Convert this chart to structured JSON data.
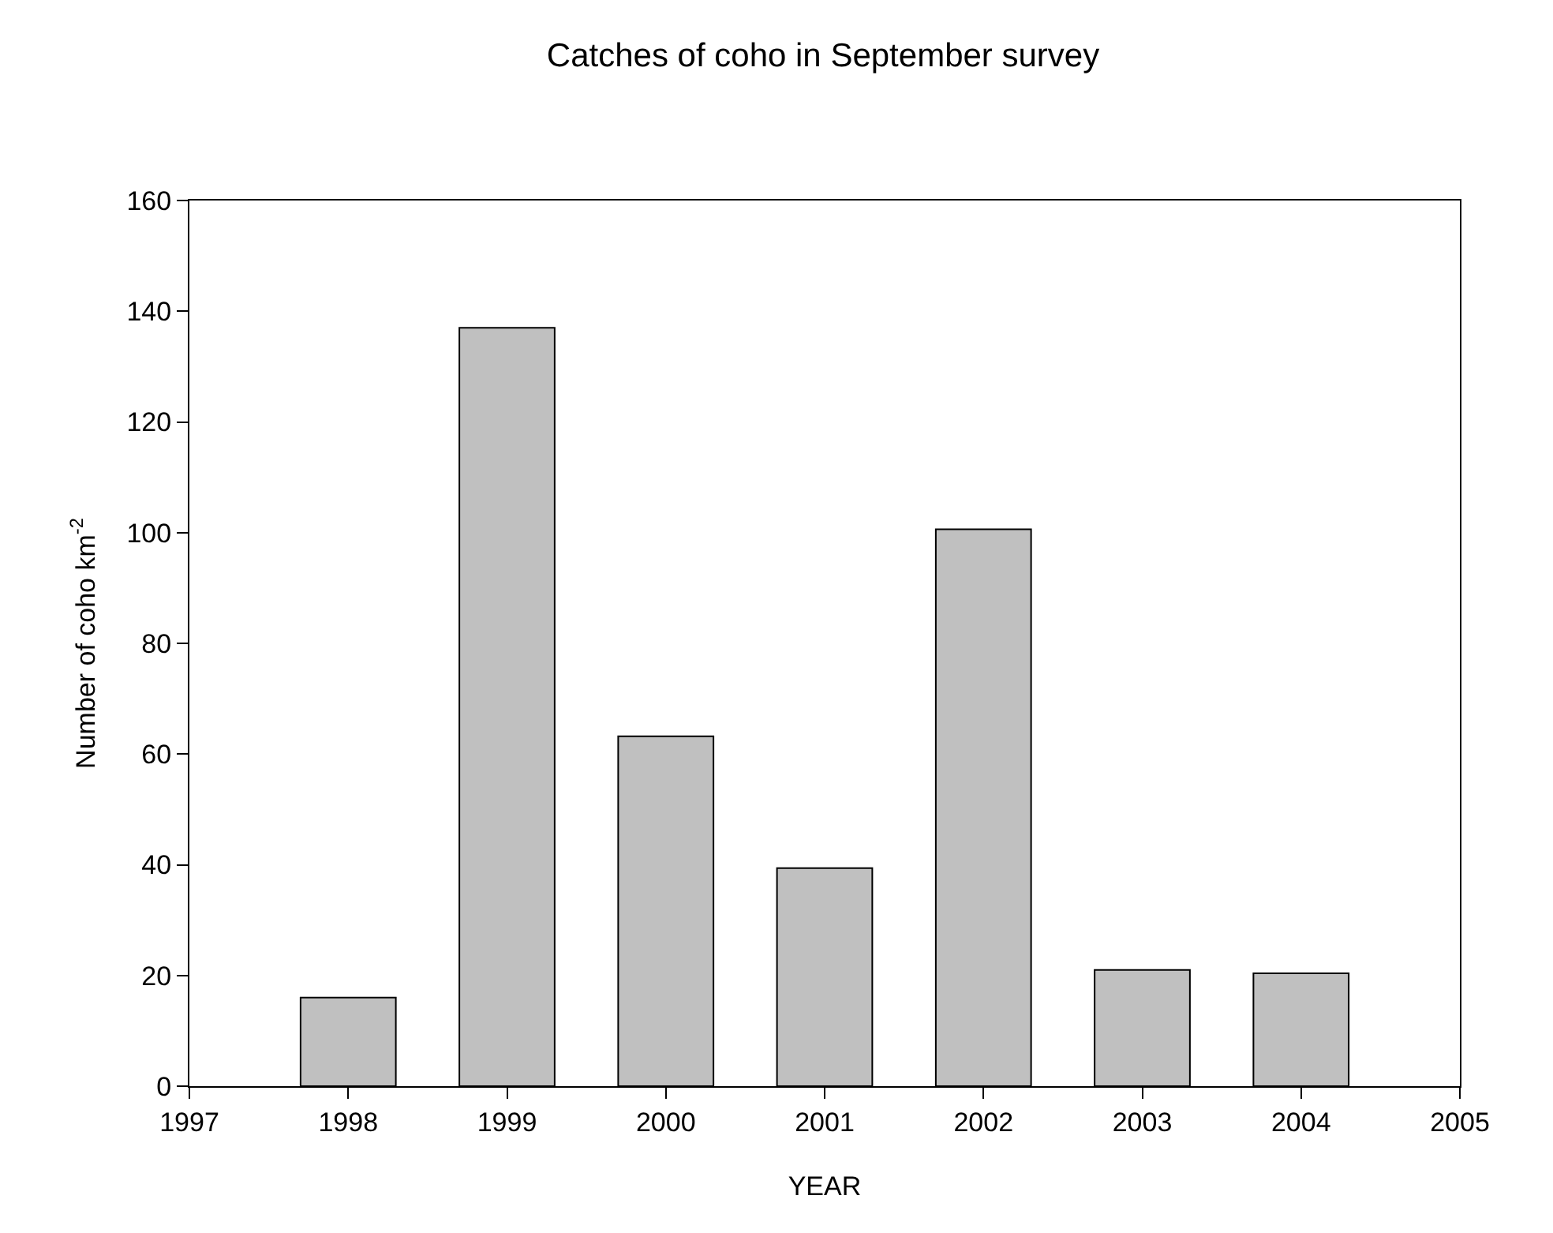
{
  "chart_data": {
    "type": "bar",
    "title": "Catches of coho in September survey",
    "xlabel": "YEAR",
    "ylabel": "Number of coho km$^{-2}$",
    "x": [
      1998,
      1999,
      2000,
      2001,
      2002,
      2003,
      2004
    ],
    "values": [
      16,
      137,
      63.2,
      39.4,
      100.6,
      21,
      20.4
    ],
    "color": "#c0c0c0",
    "xlim": [
      1997,
      2005
    ],
    "xticks": [
      1997,
      1998,
      1999,
      2000,
      2001,
      2002,
      2003,
      2004,
      2005
    ],
    "ylim": [
      0,
      160
    ],
    "yticks": [
      0,
      20,
      40,
      60,
      80,
      100,
      120,
      140,
      160
    ]
  }
}
